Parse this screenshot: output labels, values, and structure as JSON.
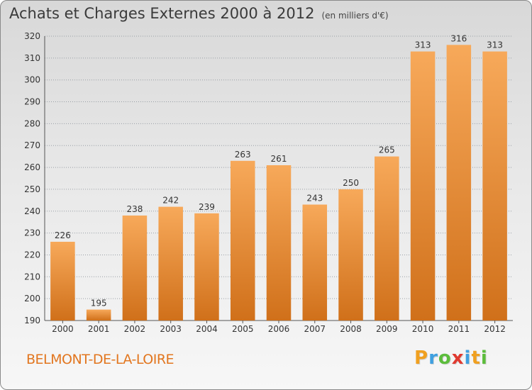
{
  "header": {
    "title": "Achats et Charges Externes 2000 à 2012",
    "unit": "(en milliers d'€)"
  },
  "footer": {
    "commune": "BELMONT-DE-LA-LOIRE",
    "logo_letters": [
      "P",
      "r",
      "o",
      "x",
      "i",
      "t",
      "i"
    ],
    "logo_colors": [
      "#f0a020",
      "#3fa0e0",
      "#5cbd3c",
      "#e03a30",
      "#3fa0e0",
      "#f0a020",
      "#5cbd3c"
    ]
  },
  "colors": {
    "bar_top": "#f7a95a",
    "bar_bottom": "#d0701a",
    "grid": "#9aa0a6",
    "title": "#3a3a3a",
    "commune": "#e2761f"
  },
  "chart_data": {
    "type": "bar",
    "title": "Achats et Charges Externes 2000 à 2012",
    "subtitle": "(en milliers d'€)",
    "categories": [
      "2000",
      "2001",
      "2002",
      "2003",
      "2004",
      "2005",
      "2006",
      "2007",
      "2008",
      "2009",
      "2010",
      "2011",
      "2012"
    ],
    "values": [
      226,
      195,
      238,
      242,
      239,
      263,
      261,
      243,
      250,
      265,
      313,
      316,
      313
    ],
    "ylim": [
      190,
      320
    ],
    "yticks": [
      190,
      200,
      210,
      220,
      230,
      240,
      250,
      260,
      270,
      280,
      290,
      300,
      310,
      320
    ],
    "grid": true,
    "xlabel": "",
    "ylabel": ""
  }
}
